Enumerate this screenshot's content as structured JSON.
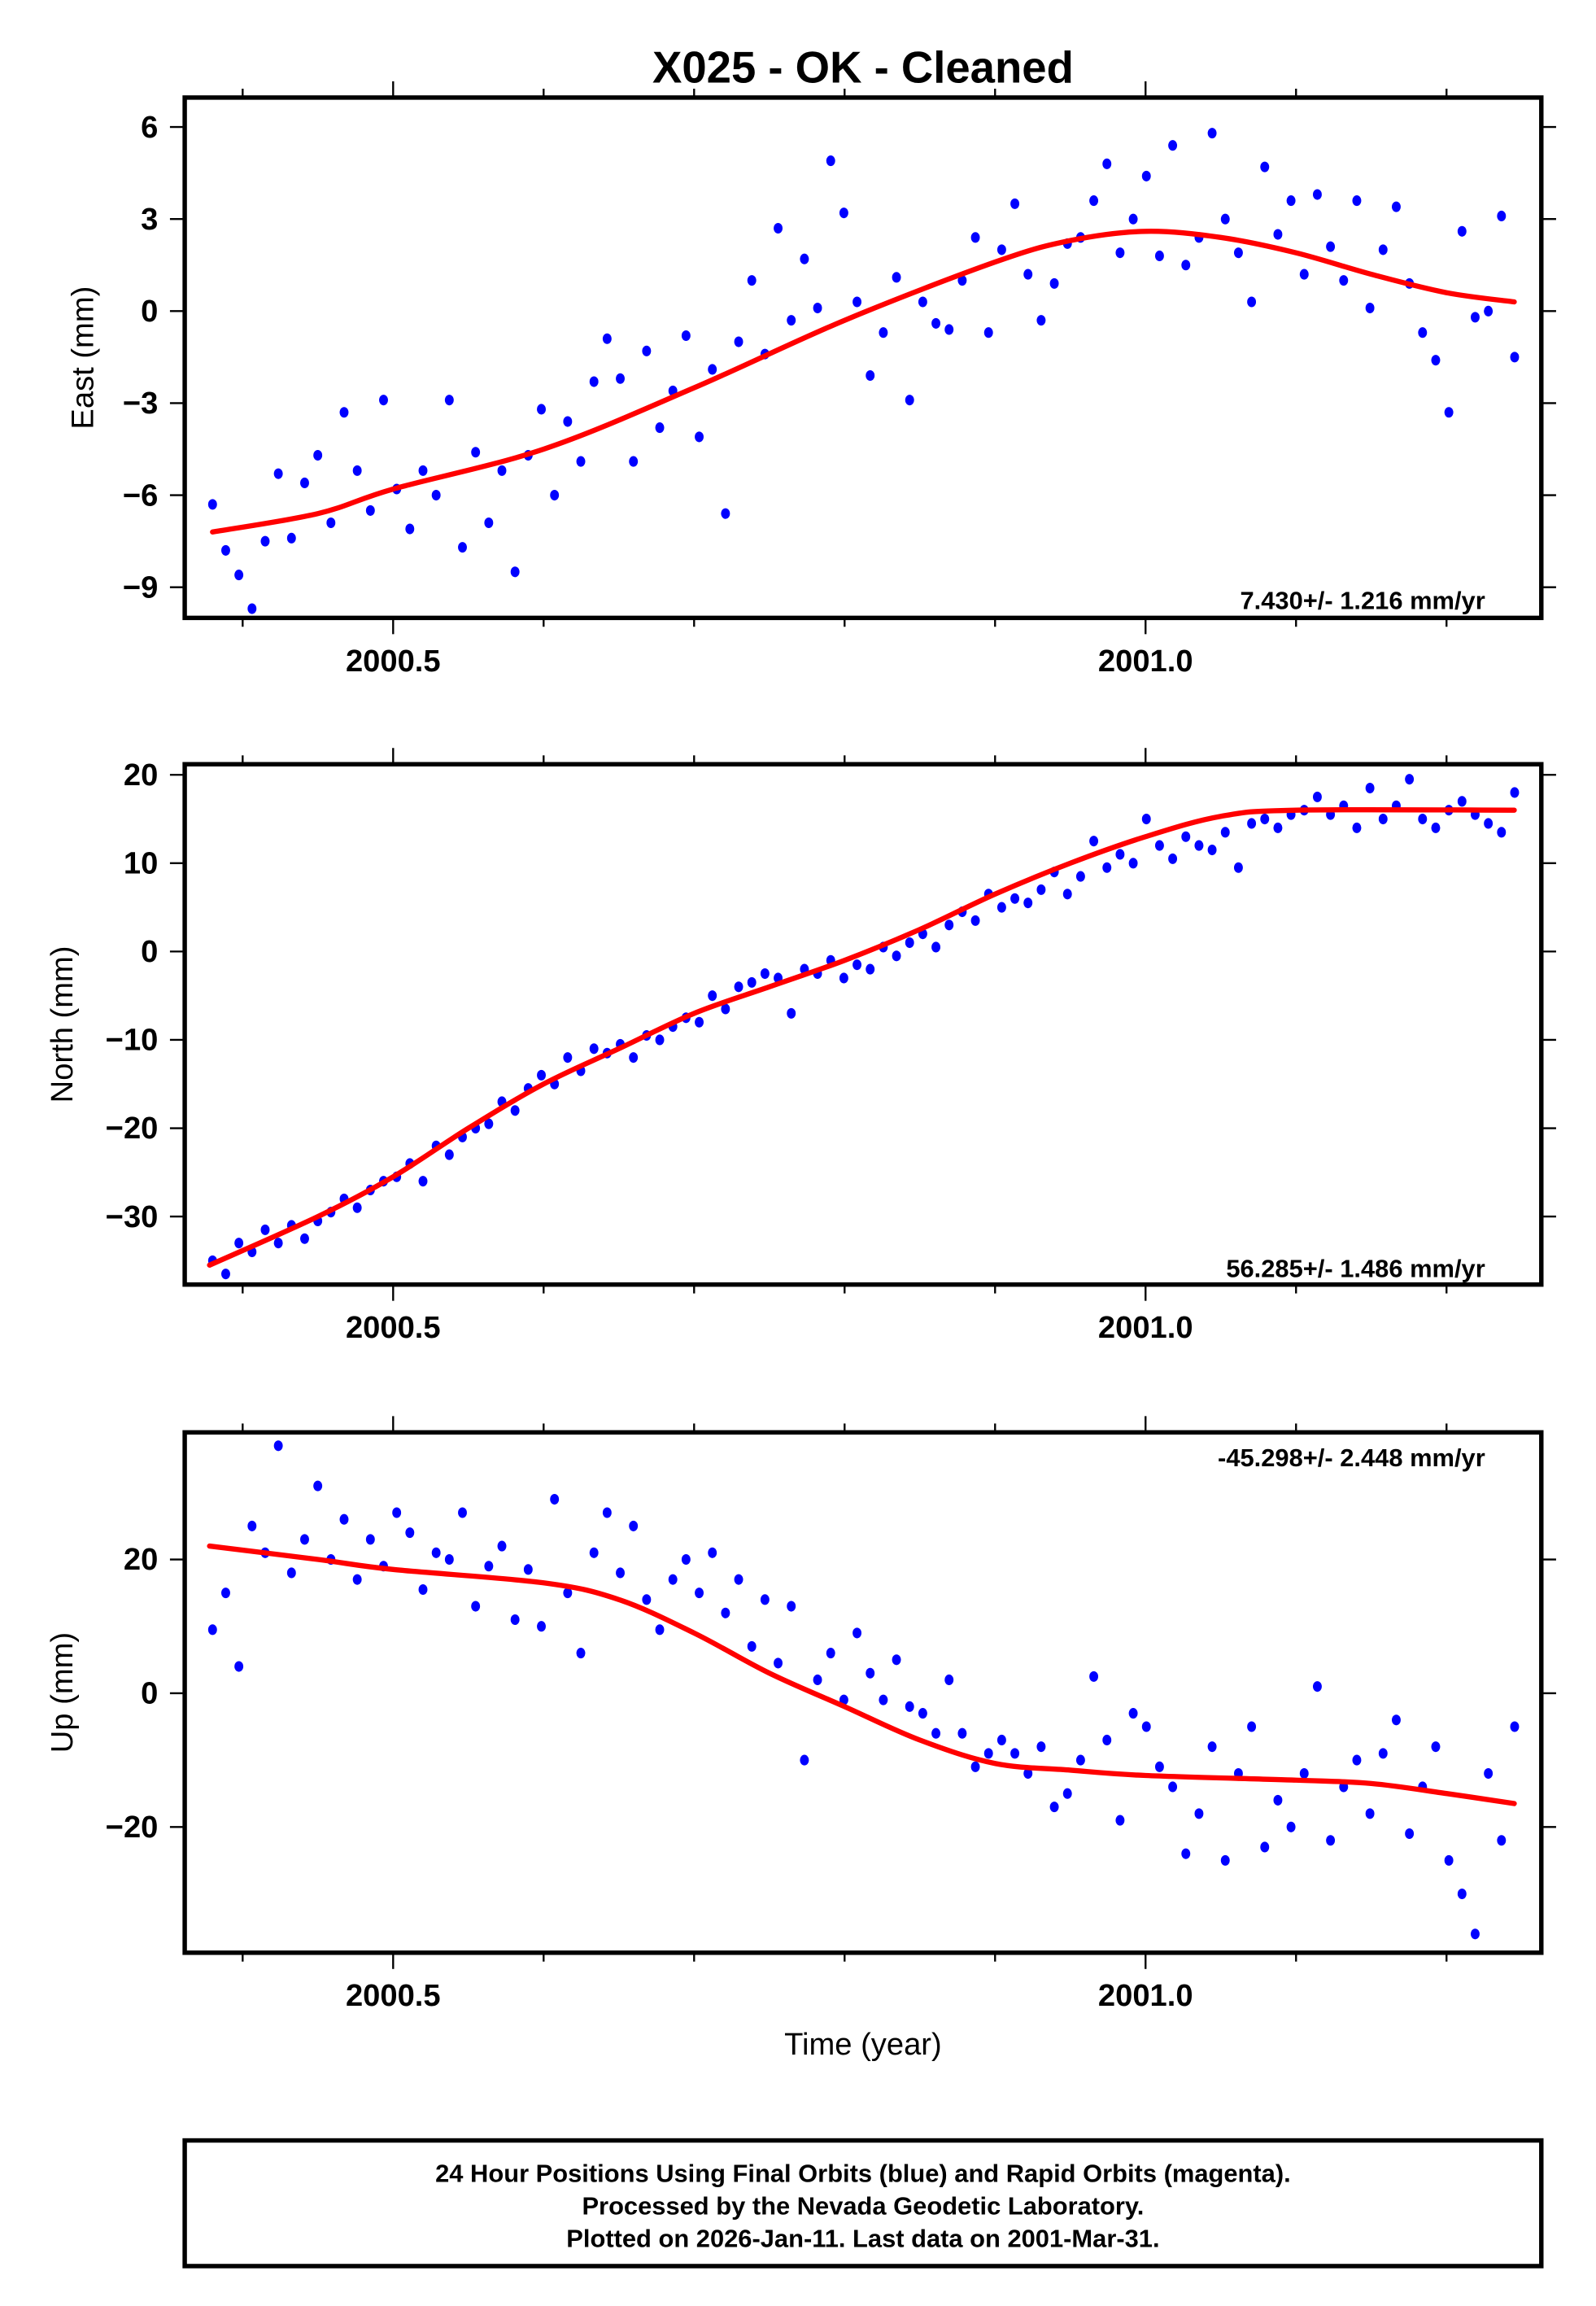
{
  "title": "X025  - OK - Cleaned",
  "xlabel": "Time (year)",
  "footer": {
    "line1": "24 Hour Positions Using Final Orbits (blue) and Rapid Orbits (magenta).",
    "line2": "Processed by the Nevada Geodetic Laboratory.",
    "line3": "Plotted on 2026-Jan-11. Last data on 2001-Mar-31."
  },
  "colors": {
    "points": "#0000ff",
    "trend": "#ff0000",
    "frame": "#000000"
  },
  "chart_data": [
    {
      "type": "scatter",
      "ylabel": "East (mm)",
      "rate": "7.430+/- 1.216 mm/yr",
      "xlim": [
        2000.3615,
        2001.263
      ],
      "ylim": [
        -10.0,
        6.96
      ],
      "xticks": [
        {
          "v": 2000.5,
          "label": "2000.5"
        },
        {
          "v": 2001.0,
          "label": "2001.0"
        }
      ],
      "xminor": [
        2000.4,
        2000.5,
        2000.6,
        2000.7,
        2000.8,
        2000.9,
        2001.0,
        2001.1,
        2001.2
      ],
      "yticks": [
        {
          "v": 6,
          "label": "6"
        },
        {
          "v": 3,
          "label": "3"
        },
        {
          "v": 0,
          "label": "0"
        },
        {
          "v": -3,
          "label": "−3"
        },
        {
          "v": -6,
          "label": "−6"
        },
        {
          "v": -9,
          "label": "−9"
        }
      ],
      "x_start": 2000.38,
      "x_step": 0.00874,
      "y": [
        -6.3,
        -7.8,
        -8.6,
        -9.7,
        -7.5,
        -5.3,
        -7.4,
        -5.6,
        -4.7,
        -6.9,
        -3.3,
        -5.2,
        -6.5,
        -2.9,
        -5.8,
        -7.1,
        -5.2,
        -6.0,
        -2.9,
        -7.7,
        -4.6,
        -6.9,
        -5.2,
        -8.5,
        -4.7,
        -3.2,
        -6.0,
        -3.6,
        -4.9,
        -2.3,
        -0.9,
        -2.2,
        -4.9,
        -1.3,
        -3.8,
        -2.6,
        -0.8,
        -4.1,
        -1.9,
        -6.6,
        -1.0,
        1.0,
        -1.4,
        2.7,
        -0.3,
        1.7,
        0.1,
        4.9,
        3.2,
        0.3,
        -2.1,
        -0.7,
        1.1,
        -2.9,
        0.3,
        -0.4,
        -0.6,
        1.0,
        2.4,
        -0.7,
        2.0,
        3.5,
        1.2,
        -0.3,
        0.9,
        2.2,
        2.4,
        3.6,
        4.8,
        1.9,
        3.0,
        4.4,
        1.8,
        5.4,
        1.5,
        2.4,
        5.8,
        3.0,
        1.9,
        0.3,
        4.7,
        2.5,
        3.6,
        1.2,
        3.8,
        2.1,
        1.0,
        3.6,
        0.1,
        2.0,
        3.4,
        0.9,
        -0.7,
        -1.6,
        -3.3,
        2.6,
        -0.2,
        0.0,
        3.1,
        -1.5
      ],
      "trend": {
        "x": [
          2000.38,
          2000.45,
          2000.5,
          2000.6,
          2000.7,
          2000.8,
          2000.9,
          2000.95,
          2001.0,
          2001.05,
          2001.1,
          2001.15,
          2001.2,
          2001.245
        ],
        "y": [
          -7.2,
          -6.6,
          -5.8,
          -4.5,
          -2.5,
          -0.3,
          1.6,
          2.3,
          2.6,
          2.4,
          1.9,
          1.2,
          0.6,
          0.3
        ]
      }
    },
    {
      "type": "scatter",
      "ylabel": "North (mm)",
      "rate": "56.285+/- 1.486 mm/yr",
      "xlim": [
        2000.3615,
        2001.263
      ],
      "ylim": [
        -37.7,
        21.2
      ],
      "xticks": [
        {
          "v": 2000.5,
          "label": "2000.5"
        },
        {
          "v": 2001.0,
          "label": "2001.0"
        }
      ],
      "xminor": [
        2000.4,
        2000.5,
        2000.6,
        2000.7,
        2000.8,
        2000.9,
        2001.0,
        2001.1,
        2001.2
      ],
      "yticks": [
        {
          "v": 20,
          "label": "20"
        },
        {
          "v": 10,
          "label": "10"
        },
        {
          "v": 0,
          "label": "0"
        },
        {
          "v": -10,
          "label": "−10"
        },
        {
          "v": -20,
          "label": "−20"
        },
        {
          "v": -30,
          "label": "−30"
        }
      ],
      "x_start": 2000.38,
      "x_step": 0.00874,
      "y": [
        -35,
        -36.5,
        -33,
        -34,
        -31.5,
        -33,
        -31,
        -32.5,
        -30.5,
        -29.5,
        -28,
        -29,
        -27,
        -26,
        -25.5,
        -24,
        -26,
        -22,
        -23,
        -21,
        -20,
        -19.5,
        -17,
        -18,
        -15.5,
        -14,
        -15,
        -12,
        -13.5,
        -11,
        -11.5,
        -10.5,
        -12,
        -9.5,
        -10,
        -8.5,
        -7.5,
        -8,
        -5,
        -6.5,
        -4,
        -3.5,
        -2.5,
        -3,
        -7,
        -2,
        -2.5,
        -1,
        -3,
        -1.5,
        -2,
        0.5,
        -0.5,
        1,
        2,
        0.5,
        3,
        4.5,
        3.5,
        6.5,
        5,
        6,
        5.5,
        7,
        9,
        6.5,
        8.5,
        12.5,
        9.5,
        11,
        10,
        15,
        12,
        10.5,
        13,
        12,
        11.5,
        13.5,
        9.5,
        14.5,
        15,
        14,
        15.5,
        16,
        17.5,
        15.5,
        16.5,
        14,
        18.5,
        15,
        16.5,
        19.5,
        15,
        14,
        16,
        17,
        15.5,
        14.5,
        13.5,
        18
      ],
      "trend": {
        "x": [
          2000.378,
          2000.45,
          2000.5,
          2000.55,
          2000.6,
          2000.65,
          2000.7,
          2000.75,
          2000.8,
          2000.85,
          2000.9,
          2000.95,
          2001.0,
          2001.05,
          2001.1,
          2001.245
        ],
        "y": [
          -35.5,
          -30,
          -25.5,
          -20,
          -15,
          -11,
          -7,
          -4,
          -1,
          2.5,
          6.5,
          10,
          13,
          15.3,
          16.0,
          16.0
        ]
      }
    },
    {
      "type": "scatter",
      "ylabel": "Up (mm)",
      "rate": "-45.298+/- 2.448 mm/yr",
      "xlim": [
        2000.3615,
        2001.263
      ],
      "ylim": [
        -38.8,
        39.0
      ],
      "xticks": [
        {
          "v": 2000.5,
          "label": "2000.5"
        },
        {
          "v": 2001.0,
          "label": "2001.0"
        }
      ],
      "xminor": [
        2000.4,
        2000.5,
        2000.6,
        2000.7,
        2000.8,
        2000.9,
        2001.0,
        2001.1,
        2001.2
      ],
      "yticks": [
        {
          "v": 20,
          "label": "20"
        },
        {
          "v": 0,
          "label": "0"
        },
        {
          "v": -20,
          "label": "−20"
        }
      ],
      "x_start": 2000.38,
      "x_step": 0.00874,
      "y": [
        9.5,
        15,
        4,
        25,
        21,
        37,
        18,
        23,
        31,
        20,
        26,
        17,
        23,
        19,
        27,
        24,
        15.5,
        21,
        20,
        27,
        13,
        19,
        22,
        11,
        18.5,
        10,
        29,
        15,
        6,
        21,
        27,
        18,
        25,
        14,
        9.5,
        17,
        20,
        15,
        21,
        12,
        17,
        7,
        14,
        4.5,
        13,
        -10,
        2,
        6,
        -1,
        9,
        3,
        -1,
        5,
        -2,
        -3,
        -6,
        2,
        -6,
        -11,
        -9,
        -7,
        -9,
        -12,
        -8,
        -17,
        -15,
        -10,
        2.5,
        -7,
        -19,
        -3,
        -5,
        -11,
        -14,
        -24,
        -18,
        -8,
        -25,
        -12,
        -5,
        -23,
        -16,
        -20,
        -12,
        1,
        -22,
        -14,
        -10,
        -18,
        -9,
        -4,
        -21,
        -14,
        -8,
        -25,
        -30,
        -36,
        -12,
        -22,
        -5
      ],
      "trend": {
        "x": [
          2000.378,
          2000.45,
          2000.5,
          2000.6,
          2000.65,
          2000.7,
          2000.75,
          2000.8,
          2000.85,
          2000.9,
          2000.95,
          2001.0,
          2001.1,
          2001.15,
          2001.2,
          2001.245
        ],
        "y": [
          22,
          20,
          18.5,
          16.5,
          14,
          9,
          3,
          -2,
          -7,
          -10.5,
          -11.5,
          -12.3,
          -13,
          -13.5,
          -15,
          -16.5
        ]
      }
    }
  ]
}
